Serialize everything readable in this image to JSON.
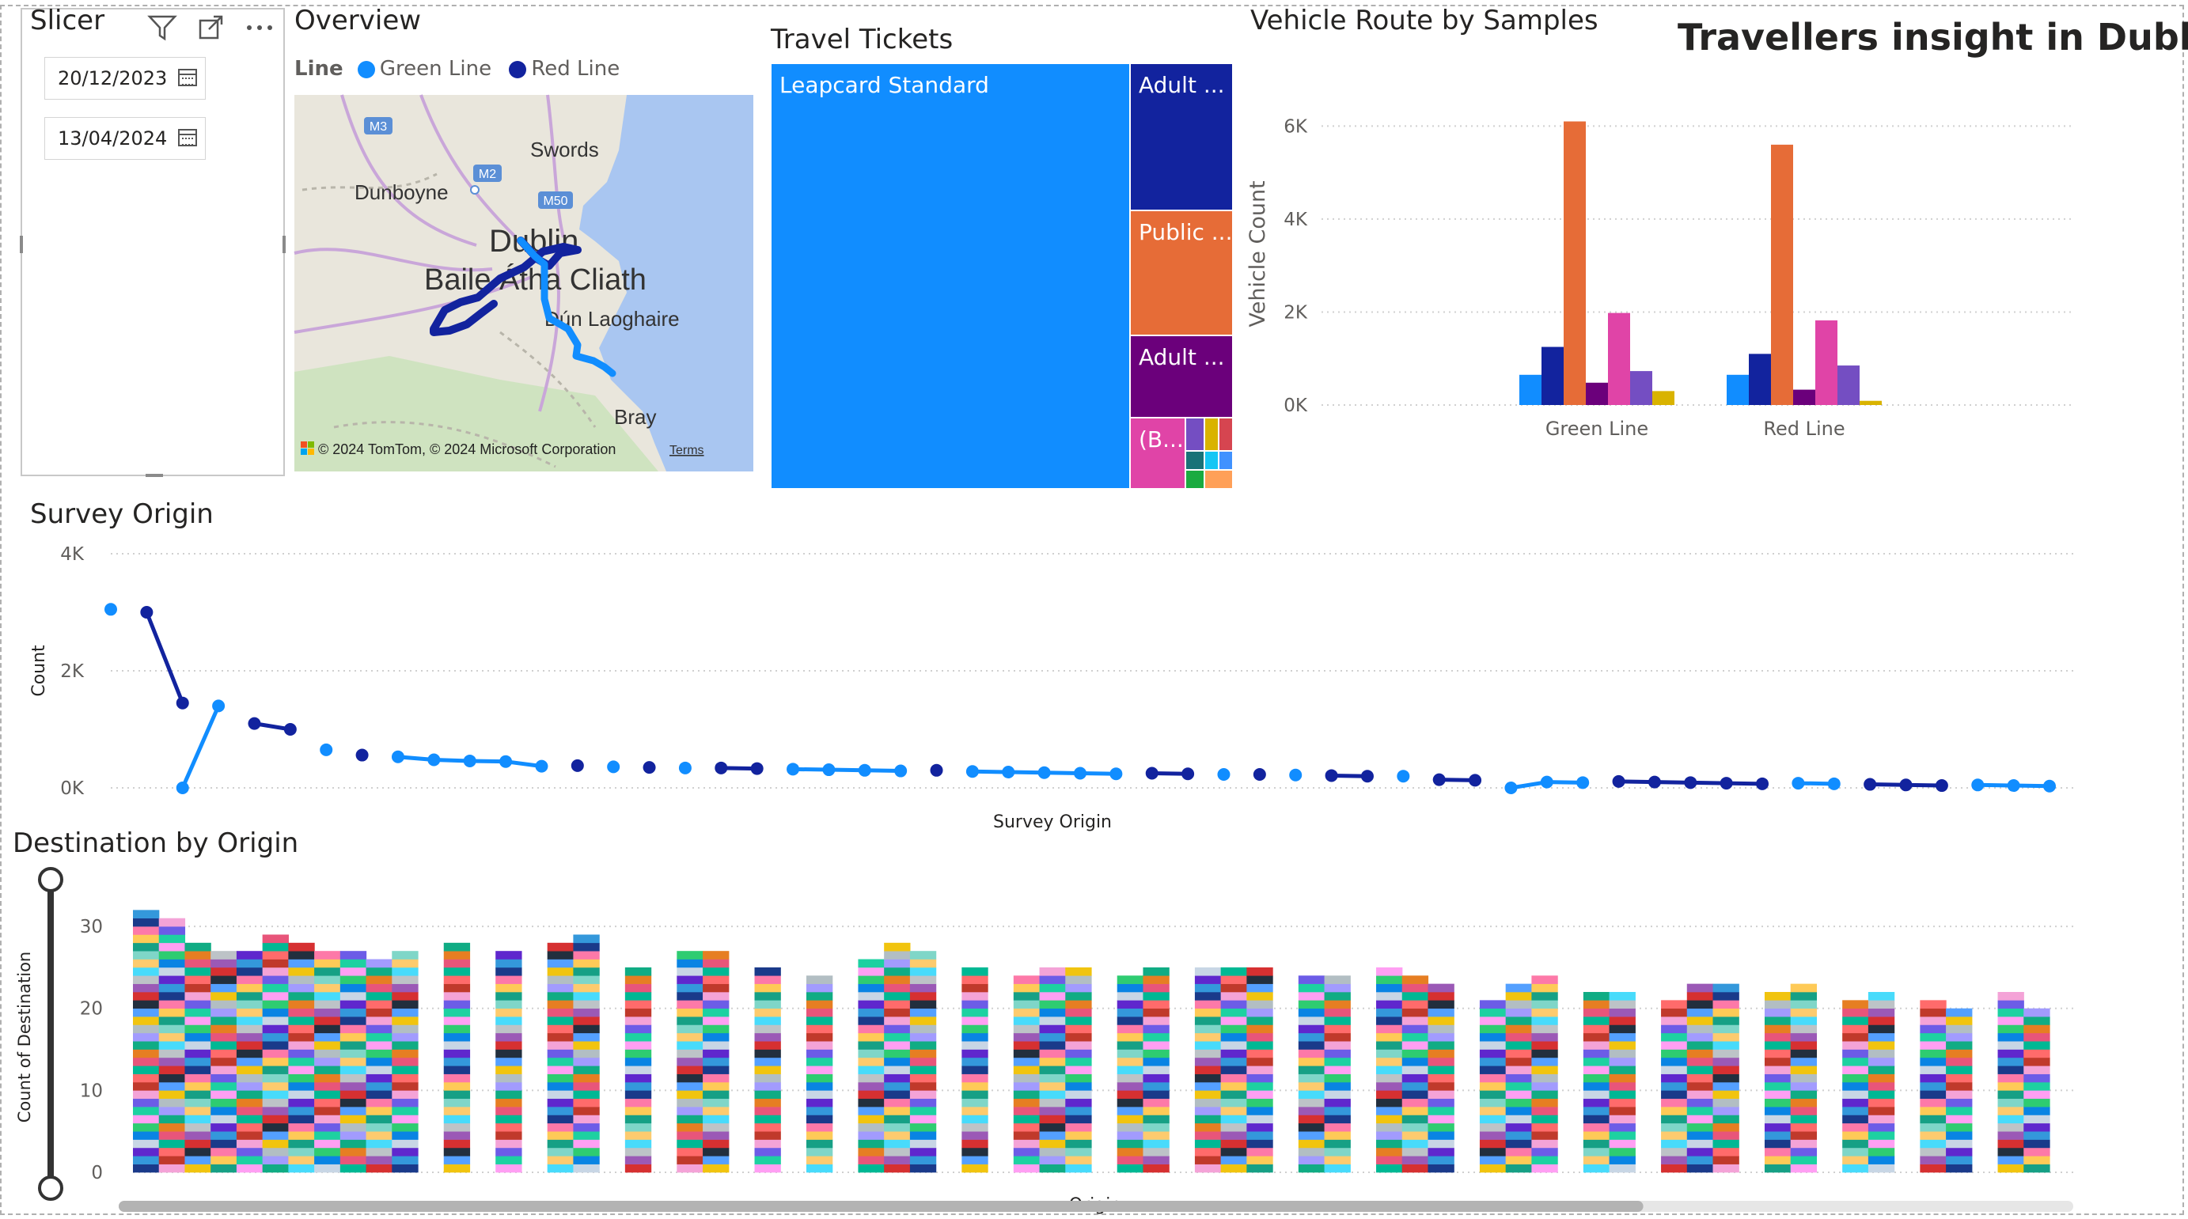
{
  "report_title": "Travellers insight in Dublin",
  "slicer": {
    "title": "Slicer",
    "start_date": "20/12/2023",
    "end_date": "13/04/2024",
    "icons": [
      "filter-icon",
      "focus-mode-icon",
      "more-options-icon",
      "calendar-icon"
    ]
  },
  "overview": {
    "title": "Overview",
    "legend_title": "Line",
    "legend": [
      {
        "name": "Green Line",
        "color": "#118dff"
      },
      {
        "name": "Red Line",
        "color": "#12239e"
      }
    ],
    "map_labels": [
      "Swords",
      "Dunboyne",
      "Dublin",
      "Baile Átha Cliath",
      "Dún Laoghaire",
      "Bray",
      "M3",
      "M2",
      "M50"
    ],
    "attribution": "© 2024 TomTom, © 2024 Microsoft Corporation",
    "terms": "Terms"
  },
  "travel_tickets": {
    "title": "Travel Tickets",
    "cells": [
      {
        "label": "Leapcard Standard",
        "color": "#118dff"
      },
      {
        "label": "Adult ...",
        "color": "#12239e"
      },
      {
        "label": "Public ...",
        "color": "#e66c37"
      },
      {
        "label": "Adult ...",
        "color": "#6b007b"
      },
      {
        "label": "(B...",
        "color": "#e044a7"
      }
    ]
  },
  "chart_data": [
    {
      "type": "bar",
      "title": "Vehicle Route by Samples",
      "ylabel": "Vehicle Count",
      "xlabel": "",
      "categories": [
        "Green Line",
        "Red Line"
      ],
      "yticks": [
        "0K",
        "2K",
        "4K",
        "6K"
      ],
      "ylim": [
        0,
        6500
      ],
      "series": [
        {
          "color": "#118dff",
          "values": [
            650,
            650
          ]
        },
        {
          "color": "#12239e",
          "values": [
            1250,
            1100
          ]
        },
        {
          "color": "#e66c37",
          "values": [
            6100,
            5600
          ]
        },
        {
          "color": "#6b007b",
          "values": [
            480,
            330
          ]
        },
        {
          "color": "#e044a7",
          "values": [
            1980,
            1820
          ]
        },
        {
          "color": "#744ec2",
          "values": [
            730,
            850
          ]
        },
        {
          "color": "#d9b300",
          "values": [
            300,
            90
          ]
        }
      ],
      "grid": true
    },
    {
      "type": "line",
      "title": "Survey Origin",
      "xlabel": "Survey Origin",
      "ylabel": "Count",
      "yticks": [
        "0K",
        "2K",
        "4K"
      ],
      "ylim": [
        0,
        4000
      ],
      "series": [
        {
          "name": "Green Line",
          "color": "#118dff",
          "values": [
            3050,
            null,
            0,
            1400,
            null,
            null,
            650,
            null,
            530,
            480,
            460,
            450,
            370,
            null,
            360,
            null,
            340,
            null,
            null,
            320,
            310,
            300,
            290,
            null,
            280,
            270,
            260,
            250,
            240,
            null,
            null,
            230,
            null,
            220,
            null,
            null,
            200,
            null,
            null,
            0,
            100,
            90,
            null,
            null,
            null,
            null,
            null,
            80,
            70,
            null,
            null,
            null,
            50,
            40,
            30
          ]
        },
        {
          "name": "Red Line",
          "color": "#12239e",
          "values": [
            null,
            3000,
            1450,
            null,
            1100,
            1000,
            null,
            560,
            null,
            null,
            null,
            null,
            null,
            380,
            null,
            350,
            null,
            340,
            330,
            null,
            null,
            null,
            null,
            300,
            null,
            null,
            null,
            null,
            null,
            250,
            240,
            null,
            230,
            null,
            210,
            200,
            null,
            140,
            130,
            null,
            null,
            null,
            110,
            100,
            90,
            80,
            70,
            null,
            null,
            60,
            50,
            40,
            null,
            null,
            null
          ]
        }
      ],
      "grid": true
    },
    {
      "type": "area",
      "title": "Destination by Origin",
      "xlabel": "Origin",
      "ylabel": "Count of Destination",
      "yticks": [
        "0",
        "10",
        "20",
        "30"
      ],
      "ylim": [
        0,
        33
      ],
      "totals": [
        32,
        31,
        28,
        27,
        27,
        29,
        28,
        27,
        27,
        26,
        27,
        null,
        28,
        null,
        27,
        null,
        28,
        29,
        null,
        25,
        null,
        27,
        27,
        null,
        25,
        null,
        24,
        null,
        26,
        28,
        27,
        null,
        25,
        null,
        24,
        25,
        25,
        null,
        24,
        25,
        null,
        25,
        25,
        25,
        null,
        24,
        24,
        null,
        25,
        24,
        23,
        null,
        21,
        23,
        24,
        null,
        22,
        22,
        null,
        21,
        23,
        23,
        null,
        22,
        23,
        null,
        21,
        22,
        null,
        21,
        20,
        null,
        22,
        20
      ],
      "grid": true
    }
  ],
  "destination_palette": [
    "#1a3a8a",
    "#e8557a",
    "#7fd6c8",
    "#f4a3d7",
    "#9b59b6",
    "#2ecc71",
    "#f1c40f",
    "#3498db",
    "#e67e22",
    "#16a085",
    "#c0392b",
    "#bdc3c7",
    "#ff9ff3",
    "#54a0ff",
    "#5f27cd",
    "#10ac84",
    "#feca57",
    "#ff6b6b",
    "#48dbfb",
    "#1dd1a1",
    "#222f3e",
    "#c8d6e5",
    "#a29bfe",
    "#fd79a8",
    "#00b894",
    "#fdcb6e",
    "#6c5ce7",
    "#d63031",
    "#0984e3",
    "#b2bec3"
  ],
  "scrollbar": {
    "position": 0.78
  }
}
